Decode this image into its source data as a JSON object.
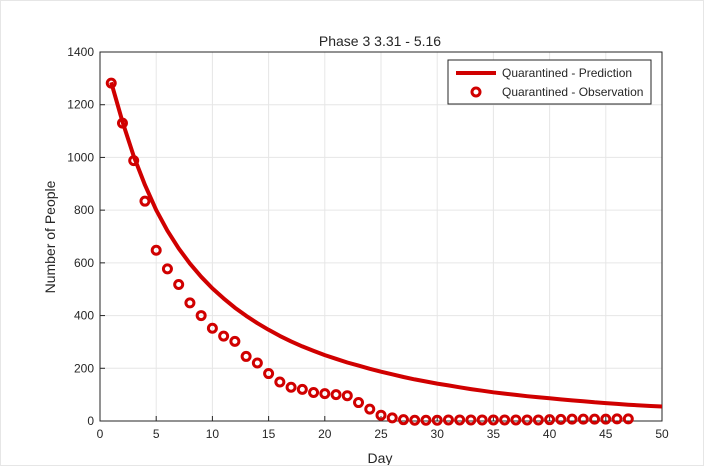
{
  "chart_data": {
    "type": "line",
    "title": "Phase 3 3.31 - 5.16",
    "xlabel": "Day",
    "ylabel": "Number of People",
    "xlim": [
      0,
      50
    ],
    "ylim": [
      0,
      1400
    ],
    "xticks": [
      0,
      5,
      10,
      15,
      20,
      25,
      30,
      35,
      40,
      45,
      50
    ],
    "yticks": [
      0,
      200,
      400,
      600,
      800,
      1000,
      1200,
      1400
    ],
    "grid": true,
    "legend_position": "top-right",
    "colors": {
      "series": "#d00000",
      "axis": "#262626",
      "grid": "#e6e6e6"
    },
    "series": [
      {
        "name": "Quarantined - Prediction",
        "kind": "line",
        "x": [
          1,
          2,
          3,
          4,
          5,
          6,
          7,
          8,
          9,
          10,
          11,
          12,
          13,
          14,
          15,
          16,
          17,
          18,
          19,
          20,
          21,
          22,
          23,
          24,
          25,
          26,
          27,
          28,
          29,
          30,
          31,
          32,
          33,
          34,
          35,
          36,
          37,
          38,
          39,
          40,
          41,
          42,
          43,
          44,
          45,
          46,
          47,
          48,
          49,
          50
        ],
        "values": [
          1285,
          1135,
          1005,
          895,
          800,
          722,
          655,
          597,
          547,
          503,
          465,
          430,
          399,
          371,
          346,
          323,
          302,
          283,
          266,
          250,
          236,
          222,
          210,
          198,
          187,
          177,
          167,
          158,
          150,
          142,
          135,
          128,
          121,
          115,
          109,
          104,
          99,
          94,
          90,
          86,
          82,
          78,
          75,
          71,
          68,
          65,
          62,
          59,
          57,
          55
        ]
      },
      {
        "name": "Quarantined - Observation",
        "kind": "scatter",
        "x": [
          1,
          2,
          3,
          4,
          5,
          6,
          7,
          8,
          9,
          10,
          11,
          12,
          13,
          14,
          15,
          16,
          17,
          18,
          19,
          20,
          21,
          22,
          23,
          24,
          25,
          26,
          27,
          28,
          29,
          30,
          31,
          32,
          33,
          34,
          35,
          36,
          37,
          38,
          39,
          40,
          41,
          42,
          43,
          44,
          45,
          46,
          47
        ],
        "values": [
          1282,
          1130,
          988,
          834,
          648,
          577,
          518,
          448,
          400,
          352,
          322,
          302,
          245,
          220,
          180,
          148,
          128,
          120,
          108,
          104,
          100,
          96,
          70,
          45,
          22,
          12,
          5,
          3,
          3,
          3,
          4,
          4,
          4,
          4,
          4,
          4,
          4,
          4,
          4,
          5,
          6,
          7,
          7,
          7,
          7,
          8,
          8
        ]
      }
    ]
  }
}
